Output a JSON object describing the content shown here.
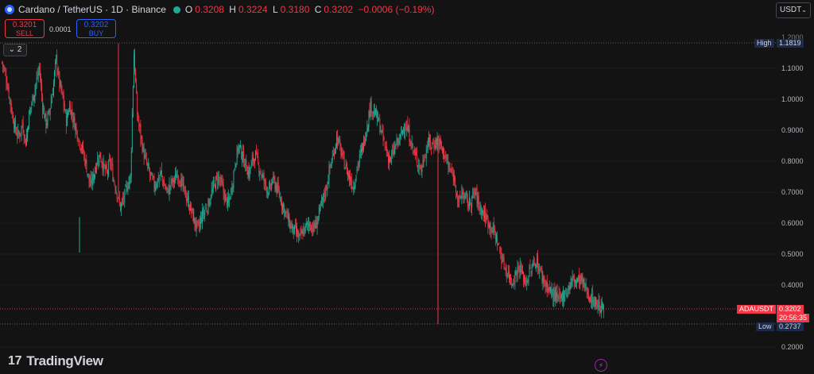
{
  "header": {
    "symbol_title": "Cardano / TetherUS · 1D · Binance",
    "ohlc": {
      "o_label": "O",
      "o_value": "0.3208",
      "h_label": "H",
      "h_value": "0.3224",
      "l_label": "L",
      "l_value": "0.3180",
      "c_label": "C",
      "c_value": "0.3202",
      "change": "−0.0006 (−0.19%)"
    }
  },
  "trade": {
    "sell_price": "0.3201",
    "sell_label": "SELL",
    "spread": "0.0001",
    "buy_price": "0.3202",
    "buy_label": "BUY"
  },
  "indicators_toggle": "2",
  "currency_select": "USDT",
  "price_axis": {
    "ticks": [
      "1.1000",
      "1.0000",
      "0.9000",
      "0.8000",
      "0.7000",
      "0.6000",
      "0.5000",
      "0.4000",
      "0.2000"
    ],
    "partial_top_tick": "1.2000"
  },
  "markers": {
    "high_label": "High",
    "high_value": "1.1819",
    "current_symbol": "ADAUSDT",
    "current_price": "0.3202",
    "countdown": "20:56:35",
    "low_label": "Low",
    "low_value": "0.2737"
  },
  "branding": {
    "logo_text": "TradingView",
    "logo_mark": "17"
  },
  "colors": {
    "up": "#22ab94",
    "down": "#f23645",
    "background": "#131313",
    "grid": "#1e1e1e"
  },
  "chart_data": {
    "type": "candlestick",
    "symbol": "ADAUSDT",
    "y_range": [
      0.18,
      1.23
    ],
    "close_path": [
      1.12,
      1.08,
      1.02,
      0.95,
      0.9,
      0.88,
      0.92,
      0.86,
      0.95,
      1.0,
      1.05,
      1.1,
      0.98,
      0.92,
      0.96,
      1.03,
      1.13,
      1.05,
      1.0,
      0.93,
      0.98,
      0.94,
      0.9,
      0.86,
      0.83,
      0.78,
      0.72,
      0.75,
      0.8,
      0.82,
      0.78,
      0.76,
      0.8,
      0.74,
      0.7,
      0.65,
      0.68,
      0.72,
      0.75,
      1.15,
      0.95,
      0.88,
      0.82,
      0.78,
      0.75,
      0.72,
      0.74,
      0.76,
      0.72,
      0.7,
      0.73,
      0.74,
      0.76,
      0.73,
      0.7,
      0.67,
      0.64,
      0.6,
      0.58,
      0.62,
      0.64,
      0.66,
      0.7,
      0.73,
      0.75,
      0.72,
      0.68,
      0.66,
      0.72,
      0.8,
      0.85,
      0.82,
      0.79,
      0.76,
      0.8,
      0.82,
      0.78,
      0.75,
      0.72,
      0.7,
      0.74,
      0.72,
      0.69,
      0.66,
      0.63,
      0.6,
      0.58,
      0.57,
      0.55,
      0.57,
      0.59,
      0.6,
      0.58,
      0.6,
      0.64,
      0.68,
      0.72,
      0.78,
      0.82,
      0.88,
      0.84,
      0.8,
      0.77,
      0.74,
      0.72,
      0.78,
      0.82,
      0.86,
      0.92,
      0.98,
      0.96,
      0.94,
      0.9,
      0.86,
      0.82,
      0.8,
      0.84,
      0.86,
      0.88,
      0.92,
      0.9,
      0.86,
      0.82,
      0.8,
      0.77,
      0.82,
      0.86,
      0.85,
      0.86,
      0.87,
      0.84,
      0.82,
      0.78,
      0.76,
      0.74,
      0.66,
      0.7,
      0.68,
      0.66,
      0.68,
      0.7,
      0.66,
      0.64,
      0.62,
      0.6,
      0.58,
      0.56,
      0.52,
      0.48,
      0.45,
      0.43,
      0.41,
      0.44,
      0.46,
      0.43,
      0.41,
      0.44,
      0.46,
      0.48,
      0.45,
      0.42,
      0.4,
      0.38,
      0.37,
      0.36,
      0.35,
      0.37,
      0.38,
      0.4,
      0.42,
      0.41,
      0.42,
      0.4,
      0.38,
      0.36,
      0.35,
      0.34,
      0.33,
      0.32
    ]
  }
}
